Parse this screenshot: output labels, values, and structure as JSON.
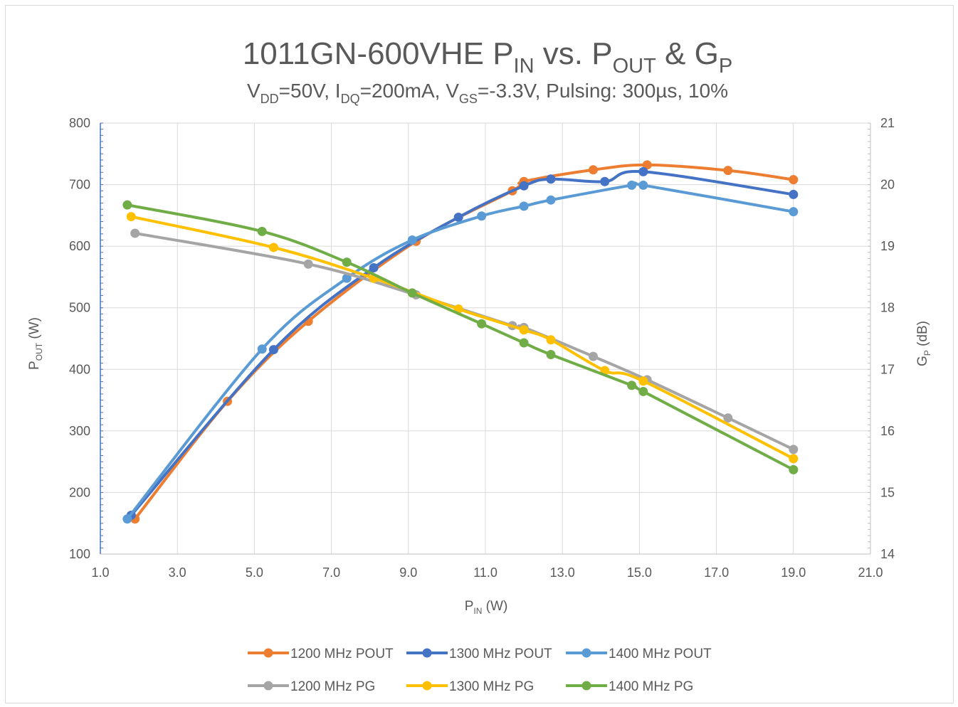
{
  "chart_data": {
    "type": "line",
    "title": {
      "main": "1011GN-600VHE P",
      "main_sub": "IN",
      "mid": " vs. P",
      "mid_sub": "OUT",
      "amp": " & G",
      "amp_sub": "P"
    },
    "subtitle": {
      "v": "V",
      "v_sub": "DD",
      "a": "=50V, I",
      "a_sub": "DQ",
      "b": "=200mA, V",
      "b_sub": "GS",
      "c": "=-3.3V, Pulsing: 300µs, 10%"
    },
    "xlabel": {
      "base": "P",
      "sub": "IN",
      "unit": " (W)"
    },
    "ylabel_left": {
      "base": "P",
      "sub": "OUT",
      "unit": " (W)"
    },
    "ylabel_right": {
      "base": "G",
      "sub": "P",
      "unit": " (dB)"
    },
    "xlim": [
      1.0,
      21.0
    ],
    "xticks": [
      "1.0",
      "3.0",
      "5.0",
      "7.0",
      "9.0",
      "11.0",
      "13.0",
      "15.0",
      "17.0",
      "19.0",
      "21.0"
    ],
    "ylim_left": [
      100,
      800
    ],
    "yticks_left": [
      "100",
      "200",
      "300",
      "400",
      "500",
      "600",
      "700",
      "800"
    ],
    "ylim_right": [
      14,
      21
    ],
    "yticks_right": [
      "14",
      "15",
      "16",
      "17",
      "18",
      "19",
      "20",
      "21"
    ],
    "grid": true,
    "legend_position": "bottom",
    "series": [
      {
        "name": "1200 MHz POUT",
        "axis": "left",
        "color": "#ED7D31",
        "points": [
          [
            1.9,
            157
          ],
          [
            4.3,
            348
          ],
          [
            6.4,
            478
          ],
          [
            9.2,
            608
          ],
          [
            11.7,
            690
          ],
          [
            12.0,
            705
          ],
          [
            13.8,
            724
          ],
          [
            15.2,
            732
          ],
          [
            17.3,
            723
          ],
          [
            19.0,
            708
          ]
        ]
      },
      {
        "name": "1300 MHz POUT",
        "axis": "left",
        "color": "#4472C4",
        "points": [
          [
            1.8,
            163
          ],
          [
            5.5,
            432
          ],
          [
            8.1,
            565
          ],
          [
            10.3,
            647
          ],
          [
            12.0,
            698
          ],
          [
            12.7,
            709
          ],
          [
            14.1,
            705
          ],
          [
            15.1,
            721
          ],
          [
            19.0,
            684
          ]
        ]
      },
      {
        "name": "1400 MHz POUT",
        "axis": "left",
        "color": "#5B9BD5",
        "points": [
          [
            1.7,
            157
          ],
          [
            5.2,
            433
          ],
          [
            7.4,
            548
          ],
          [
            9.1,
            610
          ],
          [
            10.9,
            649
          ],
          [
            12.0,
            665
          ],
          [
            12.7,
            675
          ],
          [
            14.8,
            699
          ],
          [
            15.1,
            699
          ],
          [
            19.0,
            656
          ]
        ]
      },
      {
        "name": "1200 MHz PG",
        "axis": "right",
        "color": "#A5A5A5",
        "points": [
          [
            1.9,
            19.21
          ],
          [
            6.4,
            18.71
          ],
          [
            9.2,
            18.21
          ],
          [
            11.7,
            17.71
          ],
          [
            12.0,
            17.68
          ],
          [
            13.8,
            17.21
          ],
          [
            15.2,
            16.83
          ],
          [
            17.3,
            16.21
          ],
          [
            19.0,
            15.7
          ]
        ]
      },
      {
        "name": "1300 MHz PG",
        "axis": "right",
        "color": "#FFC000",
        "points": [
          [
            1.8,
            19.48
          ],
          [
            5.5,
            18.98
          ],
          [
            8.1,
            18.48
          ],
          [
            10.3,
            17.98
          ],
          [
            12.0,
            17.64
          ],
          [
            12.7,
            17.48
          ],
          [
            14.1,
            16.98
          ],
          [
            15.1,
            16.81
          ],
          [
            19.0,
            15.55
          ]
        ]
      },
      {
        "name": "1400 MHz PG",
        "axis": "right",
        "color": "#70AD47",
        "points": [
          [
            1.7,
            19.67
          ],
          [
            5.2,
            19.24
          ],
          [
            7.4,
            18.74
          ],
          [
            9.1,
            18.24
          ],
          [
            10.9,
            17.74
          ],
          [
            12.0,
            17.43
          ],
          [
            12.7,
            17.24
          ],
          [
            14.8,
            16.74
          ],
          [
            15.1,
            16.64
          ],
          [
            19.0,
            15.37
          ]
        ]
      }
    ]
  }
}
